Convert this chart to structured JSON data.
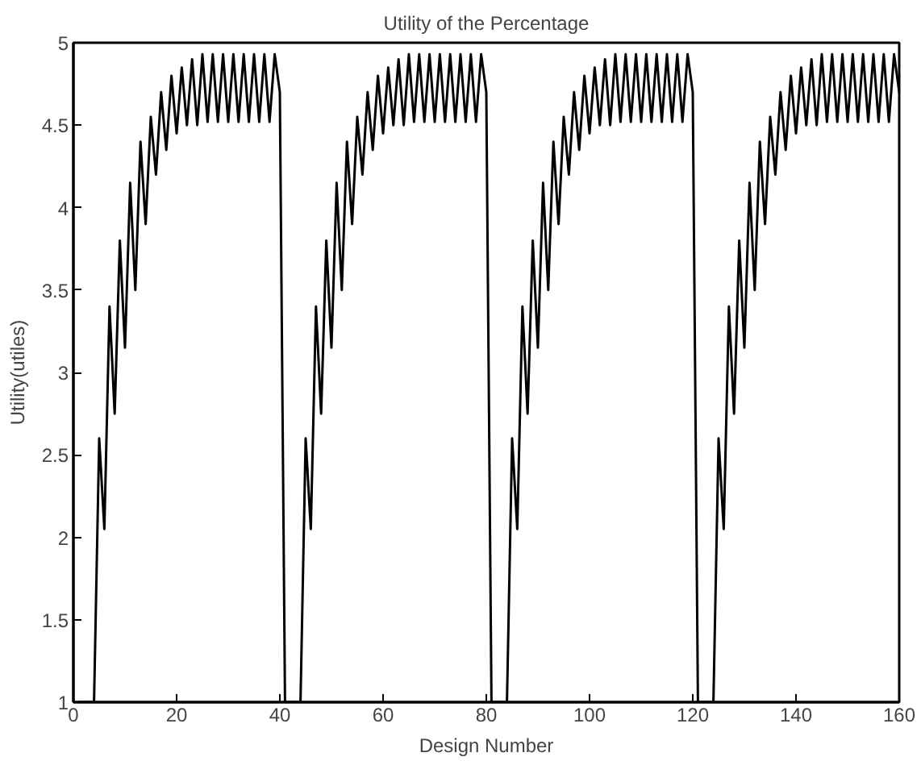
{
  "chart_data": {
    "type": "line",
    "title": "Utility of the Percentage",
    "xlabel": "Design Number",
    "ylabel": "Utility(utiles)",
    "xlim": [
      0,
      160
    ],
    "ylim": [
      1,
      5
    ],
    "xticks": [
      0,
      20,
      40,
      60,
      80,
      100,
      120,
      140,
      160
    ],
    "yticks": [
      1,
      1.5,
      2,
      2.5,
      3,
      3.5,
      4,
      4.5,
      5
    ],
    "grid": false,
    "marker": "none",
    "line_style": "solid",
    "series": [
      {
        "color": "#000000",
        "x": [
          1,
          2,
          3,
          4,
          5,
          6,
          7,
          8,
          9,
          10,
          11,
          12,
          13,
          14,
          15,
          16,
          17,
          18,
          19,
          20,
          21,
          22,
          23,
          24,
          25,
          26,
          27,
          28,
          29,
          30,
          31,
          32,
          33,
          34,
          35,
          36,
          37,
          38,
          39,
          40,
          41,
          42,
          43,
          44,
          45,
          46,
          47,
          48,
          49,
          50,
          51,
          52,
          53,
          54,
          55,
          56,
          57,
          58,
          59,
          60,
          61,
          62,
          63,
          64,
          65,
          66,
          67,
          68,
          69,
          70,
          71,
          72,
          73,
          74,
          75,
          76,
          77,
          78,
          79,
          80,
          81,
          82,
          83,
          84,
          85,
          86,
          87,
          88,
          89,
          90,
          91,
          92,
          93,
          94,
          95,
          96,
          97,
          98,
          99,
          100,
          101,
          102,
          103,
          104,
          105,
          106,
          107,
          108,
          109,
          110,
          111,
          112,
          113,
          114,
          115,
          116,
          117,
          118,
          119,
          120,
          121,
          122,
          123,
          124,
          125,
          126,
          127,
          128,
          129,
          130,
          131,
          132,
          133,
          134,
          135,
          136,
          137,
          138,
          139,
          140,
          141,
          142,
          143,
          144,
          145,
          146,
          147,
          148,
          149,
          150,
          151,
          152,
          153,
          154,
          155,
          156,
          157,
          158,
          159,
          160
        ],
        "values": [
          1,
          1,
          1,
          1,
          2.6,
          2.05,
          3.4,
          2.75,
          3.8,
          3.15,
          4.15,
          3.5,
          4.4,
          3.9,
          4.55,
          4.2,
          4.7,
          4.35,
          4.8,
          4.45,
          4.85,
          4.5,
          4.9,
          4.5,
          4.93,
          4.52,
          4.93,
          4.52,
          4.93,
          4.52,
          4.93,
          4.52,
          4.93,
          4.52,
          4.93,
          4.52,
          4.93,
          4.52,
          4.93,
          4.7,
          1,
          1,
          1,
          1,
          2.6,
          2.05,
          3.4,
          2.75,
          3.8,
          3.15,
          4.15,
          3.5,
          4.4,
          3.9,
          4.55,
          4.2,
          4.7,
          4.35,
          4.8,
          4.45,
          4.85,
          4.5,
          4.9,
          4.5,
          4.93,
          4.52,
          4.93,
          4.52,
          4.93,
          4.52,
          4.93,
          4.52,
          4.93,
          4.52,
          4.93,
          4.52,
          4.93,
          4.52,
          4.93,
          4.7,
          1,
          1,
          1,
          1,
          2.6,
          2.05,
          3.4,
          2.75,
          3.8,
          3.15,
          4.15,
          3.5,
          4.4,
          3.9,
          4.55,
          4.2,
          4.7,
          4.35,
          4.8,
          4.45,
          4.85,
          4.5,
          4.9,
          4.5,
          4.93,
          4.52,
          4.93,
          4.52,
          4.93,
          4.52,
          4.93,
          4.52,
          4.93,
          4.52,
          4.93,
          4.52,
          4.93,
          4.52,
          4.93,
          4.7,
          1,
          1,
          1,
          1,
          2.6,
          2.05,
          3.4,
          2.75,
          3.8,
          3.15,
          4.15,
          3.5,
          4.4,
          3.9,
          4.55,
          4.2,
          4.7,
          4.35,
          4.8,
          4.45,
          4.85,
          4.5,
          4.9,
          4.5,
          4.93,
          4.52,
          4.93,
          4.52,
          4.93,
          4.52,
          4.93,
          4.52,
          4.93,
          4.52,
          4.93,
          4.52,
          4.93,
          4.52,
          4.93,
          4.7
        ]
      }
    ]
  }
}
